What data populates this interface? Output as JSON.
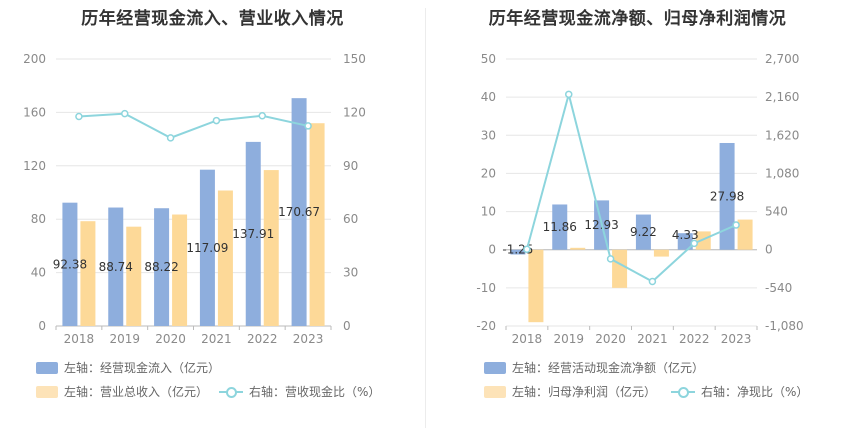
{
  "colors": {
    "bar_primary": "#8eaedd",
    "bar_secondary": "#fdd998",
    "line": "#8dd5dd",
    "grid": "#e6e6e6",
    "axis": "#cccccc"
  },
  "chart_data": [
    {
      "type": "bar",
      "title": "历年经营现金流入、营业收入情况",
      "categories": [
        "2018",
        "2019",
        "2020",
        "2021",
        "2022",
        "2023"
      ],
      "y_left": {
        "min": 0,
        "max": 200,
        "ticks": [
          "0",
          "40",
          "80",
          "120",
          "160",
          "200"
        ]
      },
      "y_right": {
        "min": 0,
        "max": 150,
        "ticks": [
          "0",
          "30",
          "60",
          "90",
          "120",
          "150"
        ]
      },
      "series": [
        {
          "name": "左轴：经营现金流入（亿元）",
          "kind": "bar",
          "axis": "left",
          "color": "#8eaedd",
          "values": [
            92.38,
            88.74,
            88.22,
            117.09,
            137.91,
            170.67
          ],
          "labels": [
            "92.38",
            "88.74",
            "88.22",
            "117.09",
            "137.91",
            "170.67"
          ]
        },
        {
          "name": "左轴：营业总收入（亿元）",
          "kind": "bar",
          "axis": "left",
          "color": "#fdd998",
          "values": [
            78.5,
            74.4,
            83.5,
            101.5,
            116.8,
            151.9
          ]
        },
        {
          "name": "右轴：营收现金比（%）",
          "kind": "line",
          "axis": "right",
          "color": "#8dd5dd",
          "values": [
            117.7,
            119.3,
            105.7,
            115.4,
            118.1,
            112.4
          ]
        }
      ]
    },
    {
      "type": "bar",
      "title": "历年经营现金流净额、归母净利润情况",
      "categories": [
        "2018",
        "2019",
        "2020",
        "2021",
        "2022",
        "2023"
      ],
      "y_left": {
        "min": -20,
        "max": 50,
        "ticks": [
          "-20",
          "-10",
          "0",
          "10",
          "20",
          "30",
          "40",
          "50"
        ]
      },
      "y_right": {
        "min": -1080,
        "max": 2700,
        "ticks": [
          "-1,080",
          "-540",
          "0",
          "540",
          "1,080",
          "1,620",
          "2,160",
          "2,700"
        ]
      },
      "series": [
        {
          "name": "左轴：经营活动现金流净额（亿元）",
          "kind": "bar",
          "axis": "left",
          "color": "#8eaedd",
          "values": [
            -1.25,
            11.86,
            12.93,
            9.22,
            4.33,
            27.98
          ],
          "labels": [
            "-1.25",
            "11.86",
            "12.93",
            "9.22",
            "4.33",
            "27.98"
          ]
        },
        {
          "name": "左轴：归母净利润（亿元）",
          "kind": "bar",
          "axis": "left",
          "color": "#fdd998",
          "values": [
            -19.0,
            0.5,
            -10.0,
            -1.8,
            4.8,
            7.9
          ]
        },
        {
          "name": "右轴：净现比（%）",
          "kind": "line",
          "axis": "right",
          "color": "#8dd5dd",
          "values": [
            6.6,
            2200,
            -130,
            -450,
            90,
            350
          ]
        }
      ]
    }
  ]
}
